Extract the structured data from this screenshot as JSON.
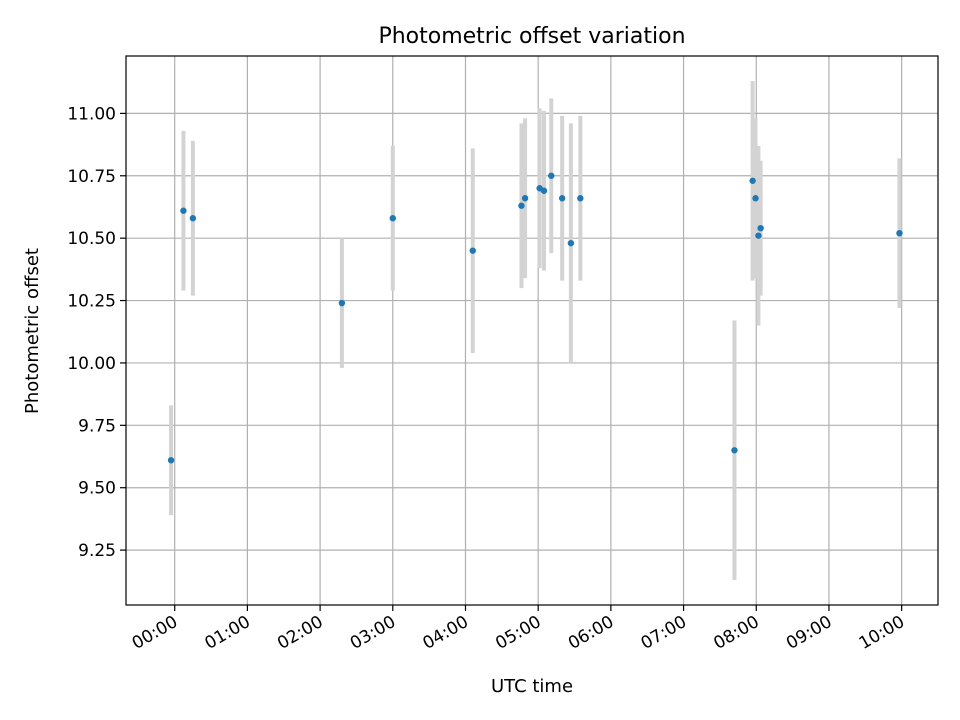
{
  "chart_data": {
    "type": "scatter",
    "title": "Photometric offset variation",
    "xlabel": "UTC time",
    "ylabel": "Photometric offset",
    "grid": true,
    "xlim": [
      -0.67,
      10.5
    ],
    "ylim": [
      9.03,
      11.23
    ],
    "x_ticks": [
      {
        "value": 0,
        "label": "00:00"
      },
      {
        "value": 1,
        "label": "01:00"
      },
      {
        "value": 2,
        "label": "02:00"
      },
      {
        "value": 3,
        "label": "03:00"
      },
      {
        "value": 4,
        "label": "04:00"
      },
      {
        "value": 5,
        "label": "05:00"
      },
      {
        "value": 6,
        "label": "06:00"
      },
      {
        "value": 7,
        "label": "07:00"
      },
      {
        "value": 8,
        "label": "08:00"
      },
      {
        "value": 9,
        "label": "09:00"
      },
      {
        "value": 10,
        "label": "10:00"
      }
    ],
    "y_ticks": [
      {
        "value": 9.25,
        "label": "9.25"
      },
      {
        "value": 9.5,
        "label": "9.50"
      },
      {
        "value": 9.75,
        "label": "9.75"
      },
      {
        "value": 10.0,
        "label": "10.00"
      },
      {
        "value": 10.25,
        "label": "10.25"
      },
      {
        "value": 10.5,
        "label": "10.50"
      },
      {
        "value": 10.75,
        "label": "10.75"
      },
      {
        "value": 11.0,
        "label": "11.00"
      }
    ],
    "point_color": "#1f77b4",
    "errorbar_color": "#d3d3d3",
    "points": [
      {
        "x": -0.05,
        "y": 9.61,
        "err": 0.22
      },
      {
        "x": 0.12,
        "y": 10.61,
        "err": 0.32
      },
      {
        "x": 0.25,
        "y": 10.58,
        "err": 0.31
      },
      {
        "x": 2.3,
        "y": 10.24,
        "err": 0.26
      },
      {
        "x": 3.0,
        "y": 10.58,
        "err": 0.29
      },
      {
        "x": 4.1,
        "y": 10.45,
        "err": 0.41
      },
      {
        "x": 4.77,
        "y": 10.63,
        "err": 0.33
      },
      {
        "x": 4.82,
        "y": 10.66,
        "err": 0.32
      },
      {
        "x": 5.02,
        "y": 10.7,
        "err": 0.32
      },
      {
        "x": 5.08,
        "y": 10.69,
        "err": 0.32
      },
      {
        "x": 5.18,
        "y": 10.75,
        "err": 0.31
      },
      {
        "x": 5.33,
        "y": 10.66,
        "err": 0.33
      },
      {
        "x": 5.45,
        "y": 10.48,
        "err": 0.48
      },
      {
        "x": 5.58,
        "y": 10.66,
        "err": 0.33
      },
      {
        "x": 7.7,
        "y": 9.65,
        "err": 0.52
      },
      {
        "x": 7.95,
        "y": 10.73,
        "err": 0.4
      },
      {
        "x": 7.99,
        "y": 10.66,
        "err": 0.32
      },
      {
        "x": 8.03,
        "y": 10.51,
        "err": 0.36
      },
      {
        "x": 8.06,
        "y": 10.54,
        "err": 0.27
      },
      {
        "x": 9.97,
        "y": 10.52,
        "err": 0.3
      }
    ]
  }
}
